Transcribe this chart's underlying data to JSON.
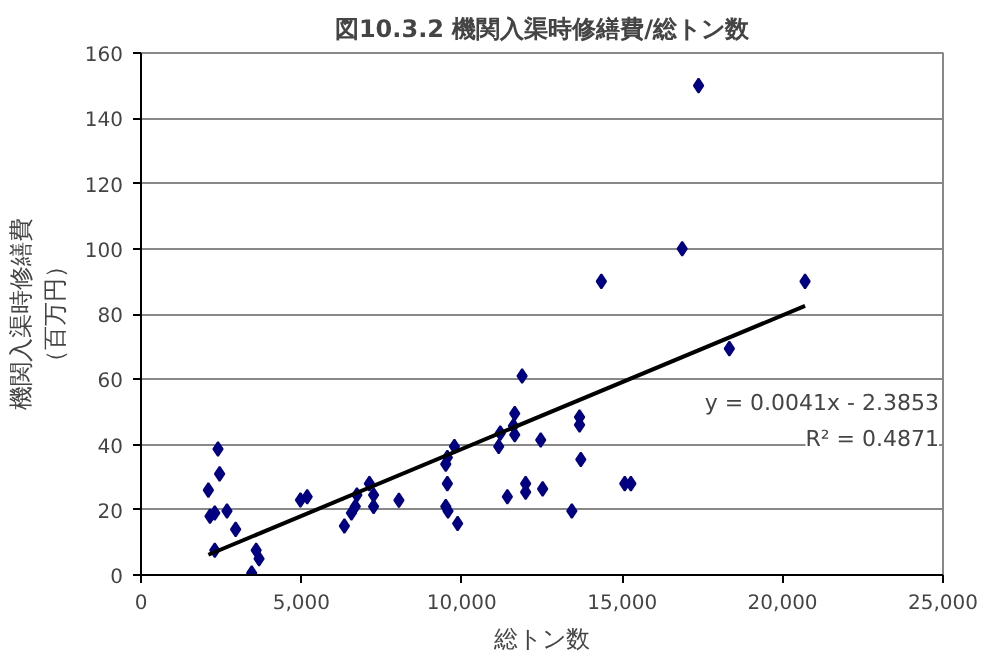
{
  "chart_data": {
    "type": "scatter",
    "title": "図10.3.2 機関入渠時修繕費/総トン数",
    "xlabel": "総トン数",
    "ylabel": "機関入渠時修繕費（百万円）",
    "xlim": [
      0,
      25000
    ],
    "ylim": [
      0,
      160
    ],
    "xticks": [
      {
        "value": 0,
        "label": "0"
      },
      {
        "value": 5000,
        "label": "5,000"
      },
      {
        "value": 10000,
        "label": "10,000"
      },
      {
        "value": 15000,
        "label": "15,000"
      },
      {
        "value": 20000,
        "label": "20,000"
      },
      {
        "value": 25000,
        "label": "25,000"
      }
    ],
    "yticks": [
      0,
      20,
      40,
      60,
      80,
      100,
      120,
      140,
      160
    ],
    "grid": "y",
    "series": [
      {
        "marker": "diamond",
        "color": "#000080",
        "x": [
          17380,
          16870,
          14350,
          11880,
          11650,
          11610,
          11200,
          11150,
          11650,
          12460,
          13670,
          13670,
          13710,
          13430,
          12520,
          11990,
          11990,
          11420,
          15080,
          15270,
          9770,
          9550,
          9500,
          9550,
          9500,
          9570,
          9870,
          20700,
          18340,
          2400,
          2450,
          2100,
          2150,
          2300,
          2680,
          2950,
          2300,
          3590,
          3680,
          3450,
          4970,
          5180,
          6340,
          6560,
          6680,
          6730,
          7120,
          7250,
          7250,
          8040
        ],
        "values": [
          150,
          100,
          90,
          61,
          49.5,
          45.7,
          43.5,
          39.4,
          43,
          41.4,
          48.4,
          46,
          35.4,
          19.6,
          26.4,
          28,
          25.4,
          24,
          28,
          28,
          39.4,
          36,
          34,
          28,
          21,
          19.6,
          15.8,
          90,
          69.4,
          38.6,
          31,
          26,
          18,
          19,
          19.6,
          14,
          7.6,
          7.6,
          5,
          0.6,
          23,
          24,
          15,
          19,
          21,
          24.5,
          28,
          24.5,
          21,
          22.9
        ]
      },
      {
        "type": "line",
        "color": "#000000",
        "x": [
          2100,
          20700
        ],
        "values": [
          6.2,
          82.5
        ]
      }
    ],
    "annotations": [
      "y = 0.0041x - 2.3853",
      "R² = 0.4871"
    ]
  }
}
